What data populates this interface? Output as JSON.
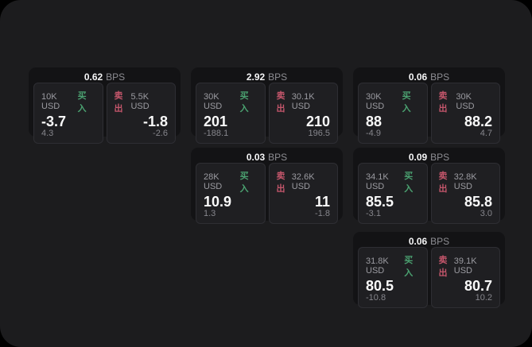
{
  "labels": {
    "bps": "BPS",
    "buy": "买入",
    "sell": "卖出"
  },
  "colors": {
    "buy_green": "#4ba271",
    "sell_red": "#c4566b",
    "panel_bg": "#1c1c1e",
    "card_bg": "#131315",
    "tile_bg": "#1f1f22"
  },
  "cards": [
    {
      "bps": "0.62",
      "buy": {
        "amount": "10K USD",
        "price": "-3.7",
        "delta": "4.3"
      },
      "sell": {
        "amount": "5.5K USD",
        "price": "-1.8",
        "delta": "-2.6"
      }
    },
    {
      "bps": "2.92",
      "buy": {
        "amount": "30K USD",
        "price": "201",
        "delta": "-188.1"
      },
      "sell": {
        "amount": "30.1K USD",
        "price": "210",
        "delta": "196.5"
      }
    },
    {
      "bps": "0.06",
      "buy": {
        "amount": "30K USD",
        "price": "88",
        "delta": "-4.9"
      },
      "sell": {
        "amount": "30K USD",
        "price": "88.2",
        "delta": "4.7"
      }
    },
    {
      "bps": "0.03",
      "buy": {
        "amount": "28K USD",
        "price": "10.9",
        "delta": "1.3"
      },
      "sell": {
        "amount": "32.6K USD",
        "price": "11",
        "delta": "-1.8"
      }
    },
    {
      "bps": "0.09",
      "buy": {
        "amount": "34.1K USD",
        "price": "85.5",
        "delta": "-3.1"
      },
      "sell": {
        "amount": "32.8K USD",
        "price": "85.8",
        "delta": "3.0"
      }
    },
    {
      "bps": "0.06",
      "buy": {
        "amount": "31.8K USD",
        "price": "80.5",
        "delta": "-10.8"
      },
      "sell": {
        "amount": "39.1K USD",
        "price": "80.7",
        "delta": "10.2"
      }
    }
  ]
}
